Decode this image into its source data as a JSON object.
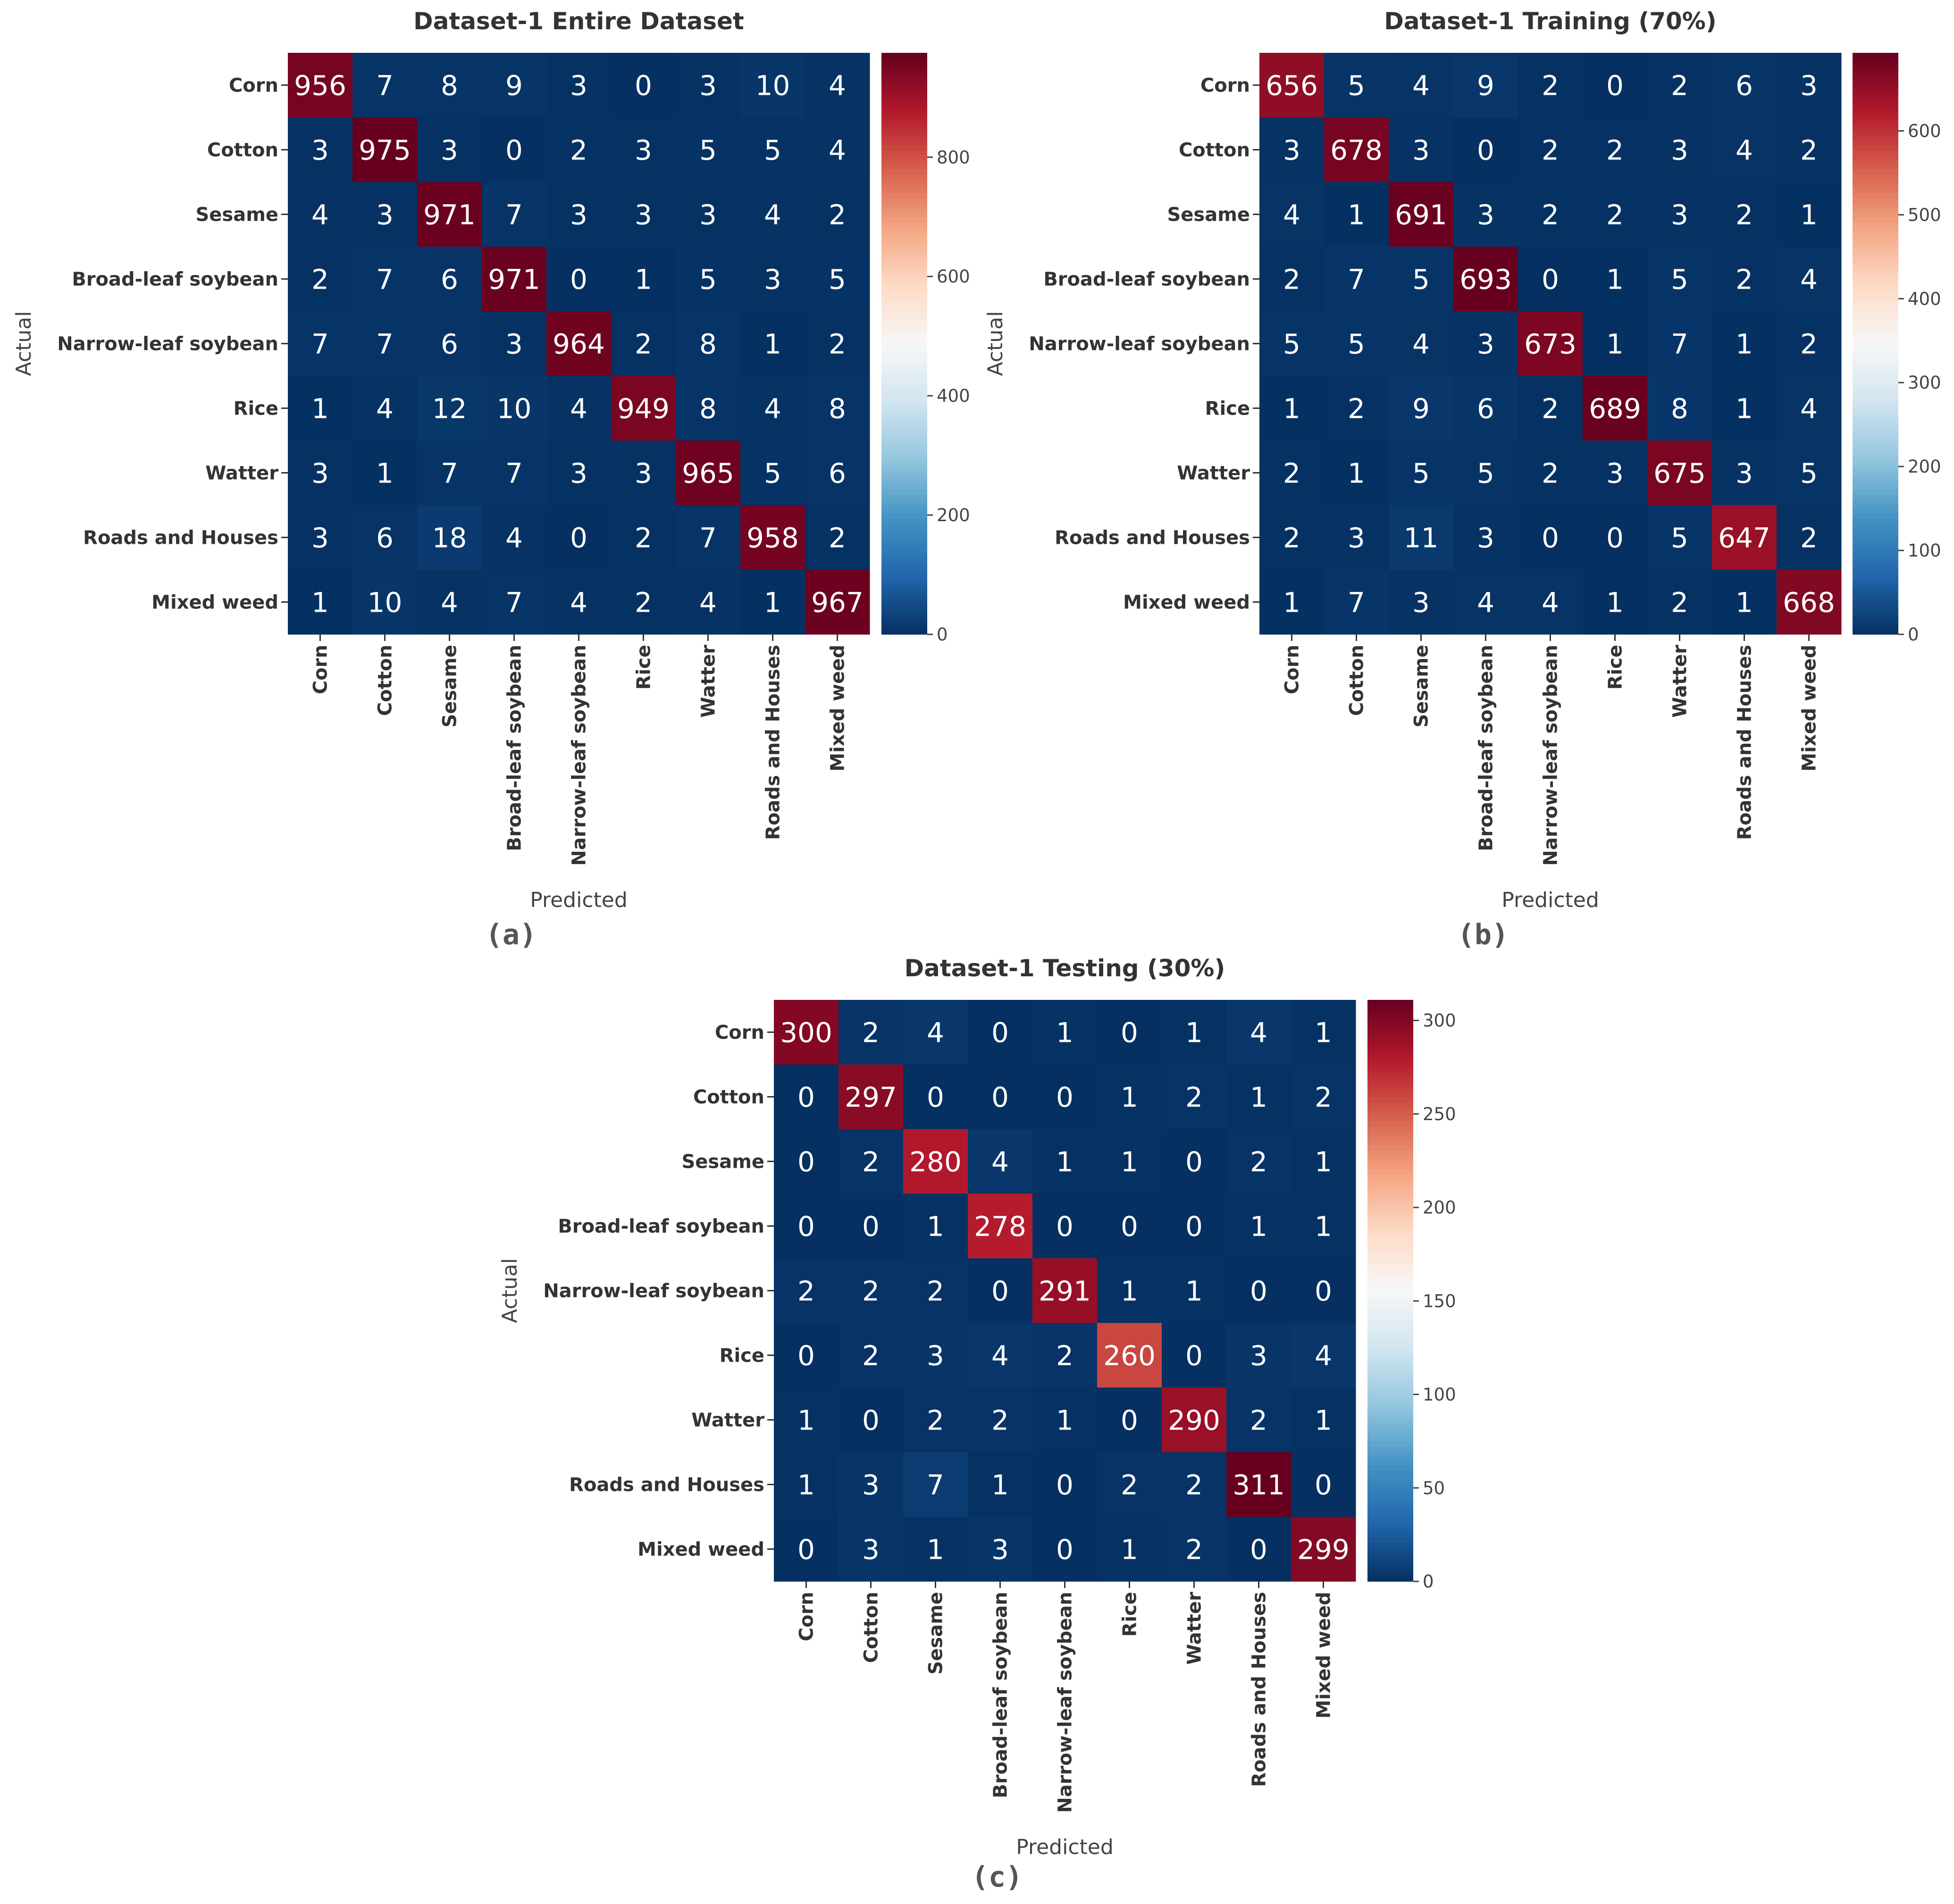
{
  "chart_data": [
    {
      "type": "heatmap",
      "panel_label": "(a)",
      "title": "Dataset-1 Entire Dataset",
      "xlabel": "Predicted",
      "ylabel": "Actual",
      "rows": [
        "Corn",
        "Cotton",
        "Sesame",
        "Broad-leaf soybean",
        "Narrow-leaf soybean",
        "Rice",
        "Watter",
        "Roads and Houses",
        "Mixed weed"
      ],
      "cols": [
        "Corn",
        "Cotton",
        "Sesame",
        "Broad-leaf soybean",
        "Narrow-leaf soybean",
        "Rice",
        "Watter",
        "Roads and Houses",
        "Mixed weed"
      ],
      "values": [
        [
          956,
          7,
          8,
          9,
          3,
          0,
          3,
          10,
          4
        ],
        [
          3,
          975,
          3,
          0,
          2,
          3,
          5,
          5,
          4
        ],
        [
          4,
          3,
          971,
          7,
          3,
          3,
          3,
          4,
          2
        ],
        [
          2,
          7,
          6,
          971,
          0,
          1,
          5,
          3,
          5
        ],
        [
          7,
          7,
          6,
          3,
          964,
          2,
          8,
          1,
          2
        ],
        [
          1,
          4,
          12,
          10,
          4,
          949,
          8,
          4,
          8
        ],
        [
          3,
          1,
          7,
          7,
          3,
          3,
          965,
          5,
          6
        ],
        [
          3,
          6,
          18,
          4,
          0,
          2,
          7,
          958,
          2
        ],
        [
          1,
          10,
          4,
          7,
          4,
          2,
          4,
          1,
          967
        ]
      ],
      "colorbar": {
        "min": 0,
        "max": 975,
        "ticks": [
          0,
          200,
          400,
          600,
          800
        ]
      }
    },
    {
      "type": "heatmap",
      "panel_label": "(b)",
      "title": "Dataset-1  Training (70%)",
      "xlabel": "Predicted",
      "ylabel": "Actual",
      "rows": [
        "Corn",
        "Cotton",
        "Sesame",
        "Broad-leaf soybean",
        "Narrow-leaf soybean",
        "Rice",
        "Watter",
        "Roads and Houses",
        "Mixed weed"
      ],
      "cols": [
        "Corn",
        "Cotton",
        "Sesame",
        "Broad-leaf soybean",
        "Narrow-leaf soybean",
        "Rice",
        "Watter",
        "Roads and Houses",
        "Mixed weed"
      ],
      "values": [
        [
          656,
          5,
          4,
          9,
          2,
          0,
          2,
          6,
          3
        ],
        [
          3,
          678,
          3,
          0,
          2,
          2,
          3,
          4,
          2
        ],
        [
          4,
          1,
          691,
          3,
          2,
          2,
          3,
          2,
          1
        ],
        [
          2,
          7,
          5,
          693,
          0,
          1,
          5,
          2,
          4
        ],
        [
          5,
          5,
          4,
          3,
          673,
          1,
          7,
          1,
          2
        ],
        [
          1,
          2,
          9,
          6,
          2,
          689,
          8,
          1,
          4
        ],
        [
          2,
          1,
          5,
          5,
          2,
          3,
          675,
          3,
          5
        ],
        [
          2,
          3,
          11,
          3,
          0,
          0,
          5,
          647,
          2
        ],
        [
          1,
          7,
          3,
          4,
          4,
          1,
          2,
          1,
          668
        ]
      ],
      "colorbar": {
        "min": 0,
        "max": 693,
        "ticks": [
          0,
          100,
          200,
          300,
          400,
          500,
          600
        ]
      }
    },
    {
      "type": "heatmap",
      "panel_label": "(c)",
      "title": "Dataset-1  Testing (30%)",
      "xlabel": "Predicted",
      "ylabel": "Actual",
      "rows": [
        "Corn",
        "Cotton",
        "Sesame",
        "Broad-leaf soybean",
        "Narrow-leaf soybean",
        "Rice",
        "Watter",
        "Roads and Houses",
        "Mixed weed"
      ],
      "cols": [
        "Corn",
        "Cotton",
        "Sesame",
        "Broad-leaf soybean",
        "Narrow-leaf soybean",
        "Rice",
        "Watter",
        "Roads and Houses",
        "Mixed weed"
      ],
      "values": [
        [
          300,
          2,
          4,
          0,
          1,
          0,
          1,
          4,
          1
        ],
        [
          0,
          297,
          0,
          0,
          0,
          1,
          2,
          1,
          2
        ],
        [
          0,
          2,
          280,
          4,
          1,
          1,
          0,
          2,
          1
        ],
        [
          0,
          0,
          1,
          278,
          0,
          0,
          0,
          1,
          1
        ],
        [
          2,
          2,
          2,
          0,
          291,
          1,
          1,
          0,
          0
        ],
        [
          0,
          2,
          3,
          4,
          2,
          260,
          0,
          3,
          4
        ],
        [
          1,
          0,
          2,
          2,
          1,
          0,
          290,
          2,
          1
        ],
        [
          1,
          3,
          7,
          1,
          0,
          2,
          2,
          311,
          0
        ],
        [
          0,
          3,
          1,
          3,
          0,
          1,
          2,
          0,
          299
        ]
      ],
      "colorbar": {
        "min": 0,
        "max": 311,
        "ticks": [
          0,
          50,
          100,
          150,
          200,
          250,
          300
        ]
      }
    }
  ]
}
